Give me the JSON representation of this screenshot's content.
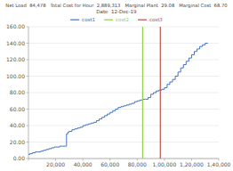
{
  "chart_data": {
    "type": "step",
    "title": "Net Load  84,478   Total Cost for Hour  2,889,313   Marginal Plant  29.08   Marginal Cost  68.70",
    "subtitle": "Date  12-Dec-19",
    "xlim": [
      0,
      140000
    ],
    "ylim": [
      0,
      160
    ],
    "xticks": [
      {
        "value": 0,
        "label": null
      },
      {
        "value": 20000,
        "label": "20,000"
      },
      {
        "value": 40000,
        "label": "40,000"
      },
      {
        "value": 60000,
        "label": "60,000"
      },
      {
        "value": 80000,
        "label": "80,000"
      },
      {
        "value": 100000,
        "label": "1,00,000"
      },
      {
        "value": 120000,
        "label": "1,20,000"
      },
      {
        "value": 140000,
        "label": "1,40,000"
      }
    ],
    "yticks": [
      {
        "value": 0,
        "label": "0.00"
      },
      {
        "value": 20,
        "label": "20.00"
      },
      {
        "value": 40,
        "label": "40.00"
      },
      {
        "value": 60,
        "label": "60.00"
      },
      {
        "value": 80,
        "label": "80.00"
      },
      {
        "value": 100,
        "label": "100.00"
      },
      {
        "value": 120,
        "label": "120.00"
      },
      {
        "value": 140,
        "label": "140.00"
      },
      {
        "value": 160,
        "label": "160.00"
      }
    ],
    "grid": "y",
    "legend": "top",
    "series": [
      {
        "name": "cost1",
        "color": "#4472C4",
        "type": "step",
        "x": [
          0,
          1000,
          3000,
          5000,
          7000,
          9000,
          11000,
          13000,
          15000,
          17000,
          19000,
          21000,
          23000,
          25000,
          27000,
          28000,
          29000,
          30000,
          32000,
          34000,
          36000,
          38000,
          40000,
          42000,
          44000,
          46000,
          48000,
          50000,
          52000,
          54000,
          56000,
          58000,
          60000,
          62000,
          64000,
          66000,
          68000,
          70000,
          72000,
          74000,
          76000,
          78000,
          80000,
          82000,
          84000,
          86000,
          88000,
          90000,
          92000,
          94000,
          96000,
          98000,
          100000,
          102000,
          104000,
          106000,
          108000,
          110000,
          112000,
          114000,
          116000,
          118000,
          120000,
          122000,
          124000,
          126000,
          128000,
          130000,
          132000
        ],
        "values": [
          5,
          6,
          7,
          8,
          8,
          9,
          10,
          11,
          12,
          13,
          14,
          14,
          15,
          15,
          15,
          30,
          32,
          33,
          35,
          36,
          37,
          38,
          40,
          41,
          42,
          43,
          44,
          46,
          48,
          50,
          52,
          54,
          56,
          58,
          60,
          62,
          63,
          64,
          65,
          66,
          67,
          69,
          70,
          71,
          72,
          72,
          74,
          78,
          80,
          82,
          83,
          84,
          86,
          90,
          93,
          96,
          100,
          105,
          110,
          114,
          118,
          122,
          126,
          130,
          133,
          136,
          138,
          140,
          140
        ]
      },
      {
        "name": "cost2",
        "color": "#92D050",
        "type": "vline",
        "x": 84000
      },
      {
        "name": "cost3",
        "color": "#C0504D",
        "type": "vline",
        "x": 97000
      }
    ]
  }
}
